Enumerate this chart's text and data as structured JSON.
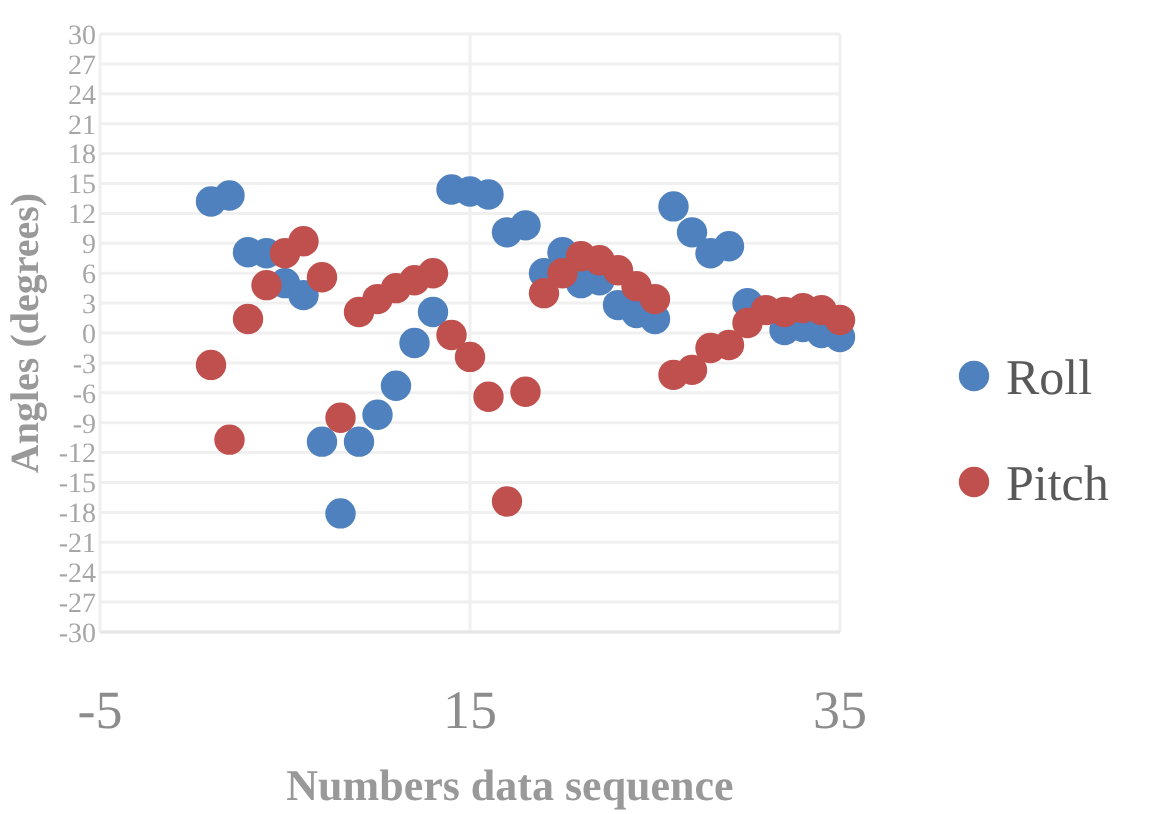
{
  "chart_data": {
    "type": "scatter",
    "xlabel": "Numbers data sequence",
    "ylabel": "Angles (degrees)",
    "x": [
      1,
      2,
      3,
      4,
      5,
      6,
      7,
      8,
      9,
      10,
      11,
      12,
      13,
      14,
      15,
      16,
      17,
      18,
      19,
      20,
      21,
      22,
      23,
      24,
      25,
      26,
      27,
      28,
      29,
      30,
      31,
      32,
      33,
      34,
      35
    ],
    "series": [
      {
        "name": "Roll",
        "color": "#4e81bd",
        "values": [
          13.2,
          13.8,
          8.1,
          8.0,
          5.0,
          3.8,
          -10.9,
          -18.1,
          -10.9,
          -8.2,
          -5.3,
          -1.0,
          2.1,
          14.4,
          14.2,
          13.9,
          10.1,
          10.8,
          6.0,
          8.1,
          5.0,
          5.3,
          2.8,
          2.0,
          1.4,
          12.7,
          10.1,
          8.0,
          8.7,
          3.0,
          null,
          0.3,
          0.6,
          0.0,
          -0.4
        ]
      },
      {
        "name": "Pitch",
        "color": "#c0504d",
        "values": [
          -3.2,
          -10.7,
          1.4,
          4.8,
          8.0,
          9.2,
          5.6,
          -8.5,
          2.1,
          3.4,
          4.5,
          5.3,
          6.0,
          -0.2,
          -2.4,
          -6.4,
          -16.9,
          -5.9,
          4.0,
          6.0,
          7.7,
          7.3,
          6.3,
          4.7,
          3.4,
          -4.2,
          -3.7,
          -1.5,
          -1.2,
          1.0,
          2.3,
          2.1,
          2.5,
          2.3,
          1.3
        ]
      }
    ],
    "xlim": [
      -5,
      35
    ],
    "xticks": [
      -5,
      15,
      35
    ],
    "ylim": [
      -30,
      30
    ],
    "yticks": [
      -30,
      -27,
      -24,
      -21,
      -18,
      -15,
      -12,
      -9,
      -6,
      -3,
      0,
      3,
      6,
      9,
      12,
      15,
      18,
      21,
      24,
      27,
      30
    ],
    "grid": true,
    "legend": "right",
    "marker": "circle"
  }
}
